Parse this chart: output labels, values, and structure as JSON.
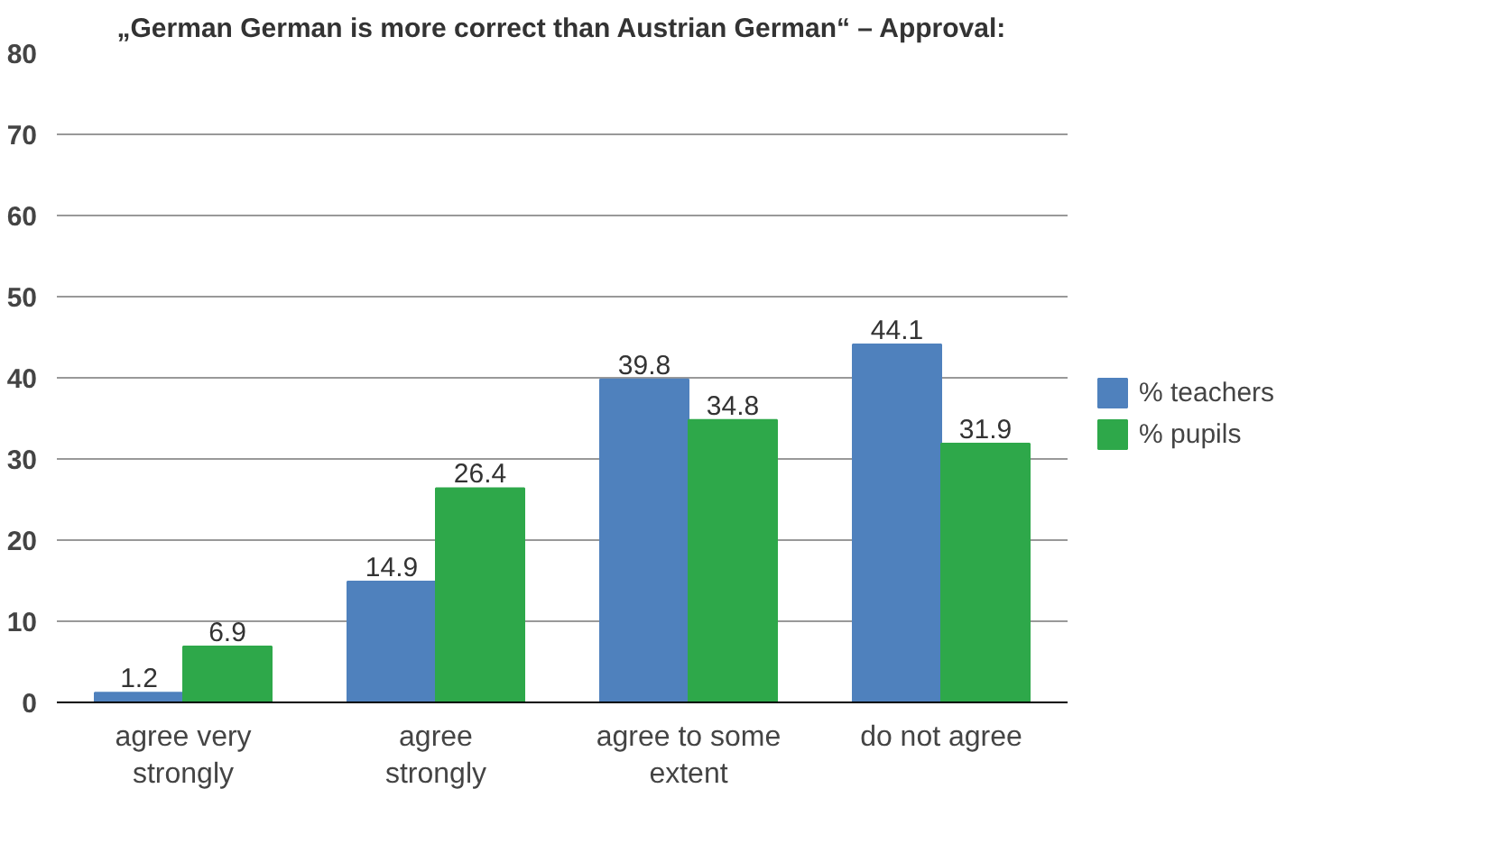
{
  "chart_data": {
    "type": "bar",
    "title": "„German German is more correct than Austrian German“ – Approval:",
    "categories": [
      "agree very strongly",
      "agree strongly",
      "agree to some extent",
      "do not agree"
    ],
    "series": [
      {
        "name": "% teachers",
        "color": "#4f81bd",
        "values": [
          1.2,
          14.9,
          39.8,
          44.1
        ]
      },
      {
        "name": "% pupils",
        "color": "#2ea84a",
        "values": [
          6.9,
          26.4,
          34.8,
          31.9
        ]
      }
    ],
    "ylim": [
      0,
      80
    ],
    "yticks": [
      0,
      10,
      20,
      30,
      40,
      50,
      60,
      70,
      80
    ],
    "grid": "y",
    "legend": "right",
    "data_labels": true
  }
}
